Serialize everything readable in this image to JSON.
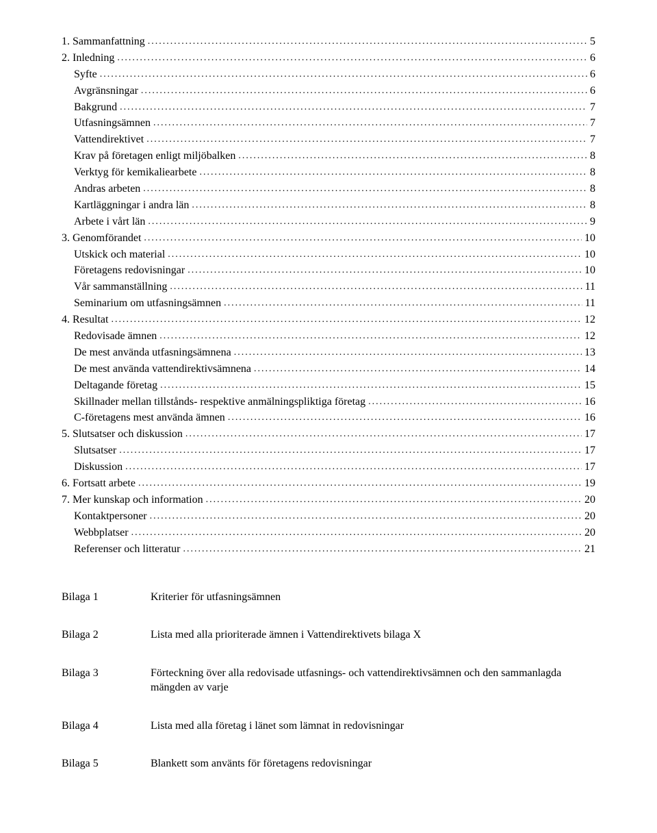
{
  "toc": [
    {
      "label": "1. Sammanfattning",
      "page": "5",
      "level": 1
    },
    {
      "label": "2. Inledning",
      "page": "6",
      "level": 1
    },
    {
      "label": "Syfte",
      "page": "6",
      "level": 2
    },
    {
      "label": "Avgränsningar",
      "page": "6",
      "level": 2
    },
    {
      "label": "Bakgrund",
      "page": "7",
      "level": 2
    },
    {
      "label": "Utfasningsämnen",
      "page": "7",
      "level": 2
    },
    {
      "label": "Vattendirektivet",
      "page": "7",
      "level": 2
    },
    {
      "label": "Krav på företagen enligt miljöbalken",
      "page": "8",
      "level": 2
    },
    {
      "label": "Verktyg för kemikaliearbete",
      "page": "8",
      "level": 2
    },
    {
      "label": "Andras arbeten",
      "page": "8",
      "level": 2
    },
    {
      "label": "Kartläggningar i andra län",
      "page": "8",
      "level": 2
    },
    {
      "label": "Arbete i vårt län",
      "page": "9",
      "level": 2
    },
    {
      "label": "3. Genomförandet",
      "page": "10",
      "level": 1
    },
    {
      "label": "Utskick och material",
      "page": "10",
      "level": 2
    },
    {
      "label": "Företagens redovisningar",
      "page": "10",
      "level": 2
    },
    {
      "label": "Vår sammanställning",
      "page": "11",
      "level": 2
    },
    {
      "label": "Seminarium om utfasningsämnen",
      "page": "11",
      "level": 2
    },
    {
      "label": "4. Resultat",
      "page": "12",
      "level": 1
    },
    {
      "label": "Redovisade ämnen",
      "page": "12",
      "level": 2
    },
    {
      "label": "De mest använda utfasningsämnena",
      "page": "13",
      "level": 2
    },
    {
      "label": "De mest använda vattendirektivsämnena",
      "page": "14",
      "level": 2
    },
    {
      "label": "Deltagande företag",
      "page": "15",
      "level": 2
    },
    {
      "label": "Skillnader mellan tillstånds- respektive anmälningspliktiga företag",
      "page": "16",
      "level": 2
    },
    {
      "label": "C-företagens mest använda ämnen",
      "page": "16",
      "level": 2
    },
    {
      "label": "5. Slutsatser och diskussion",
      "page": "17",
      "level": 1
    },
    {
      "label": "Slutsatser",
      "page": "17",
      "level": 2
    },
    {
      "label": "Diskussion",
      "page": "17",
      "level": 2
    },
    {
      "label": "6. Fortsatt arbete",
      "page": "19",
      "level": 1
    },
    {
      "label": "7. Mer kunskap och information",
      "page": "20",
      "level": 1
    },
    {
      "label": "Kontaktpersoner",
      "page": "20",
      "level": 2
    },
    {
      "label": "Webbplatser",
      "page": "20",
      "level": 2
    },
    {
      "label": "Referenser och litteratur",
      "page": "21",
      "level": 2
    }
  ],
  "bilagor": [
    {
      "label": "Bilaga 1",
      "desc": "Kriterier för utfasningsämnen"
    },
    {
      "label": "Bilaga 2",
      "desc": "Lista med alla prioriterade ämnen i Vattendirektivets bilaga X"
    },
    {
      "label": "Bilaga 3",
      "desc": "Förteckning över alla redovisade utfasnings- och vattendirektivsämnen och den sammanlagda mängden av varje"
    },
    {
      "label": "Bilaga 4",
      "desc": "Lista med alla företag i länet som lämnat in redovisningar"
    },
    {
      "label": "Bilaga 5",
      "desc": "Blankett som använts för företagens redovisningar"
    }
  ]
}
